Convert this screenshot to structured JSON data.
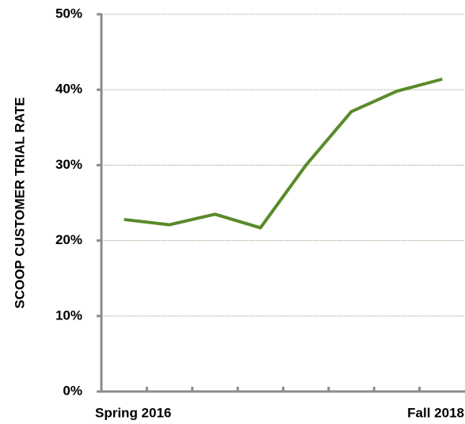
{
  "chart_data": {
    "type": "line",
    "ylabel": "SCOOP CUSTOMER TRIAL RATE",
    "categories": [
      "Spring 2016",
      null,
      null,
      null,
      null,
      null,
      null,
      "Fall 2018"
    ],
    "series": [
      {
        "name": "Trial rate",
        "color": "#5a8a2b",
        "values": [
          22.8,
          22.1,
          23.5,
          21.7,
          30.0,
          37.1,
          39.8,
          41.4
        ]
      }
    ],
    "ylim": [
      0,
      50
    ],
    "yticks": [
      {
        "value": 0,
        "label": "0%"
      },
      {
        "value": 10,
        "label": "10%"
      },
      {
        "value": 20,
        "label": "20%"
      },
      {
        "value": 30,
        "label": "30%"
      },
      {
        "value": 40,
        "label": "40%"
      },
      {
        "value": 50,
        "label": "50%"
      }
    ],
    "grid": true
  }
}
